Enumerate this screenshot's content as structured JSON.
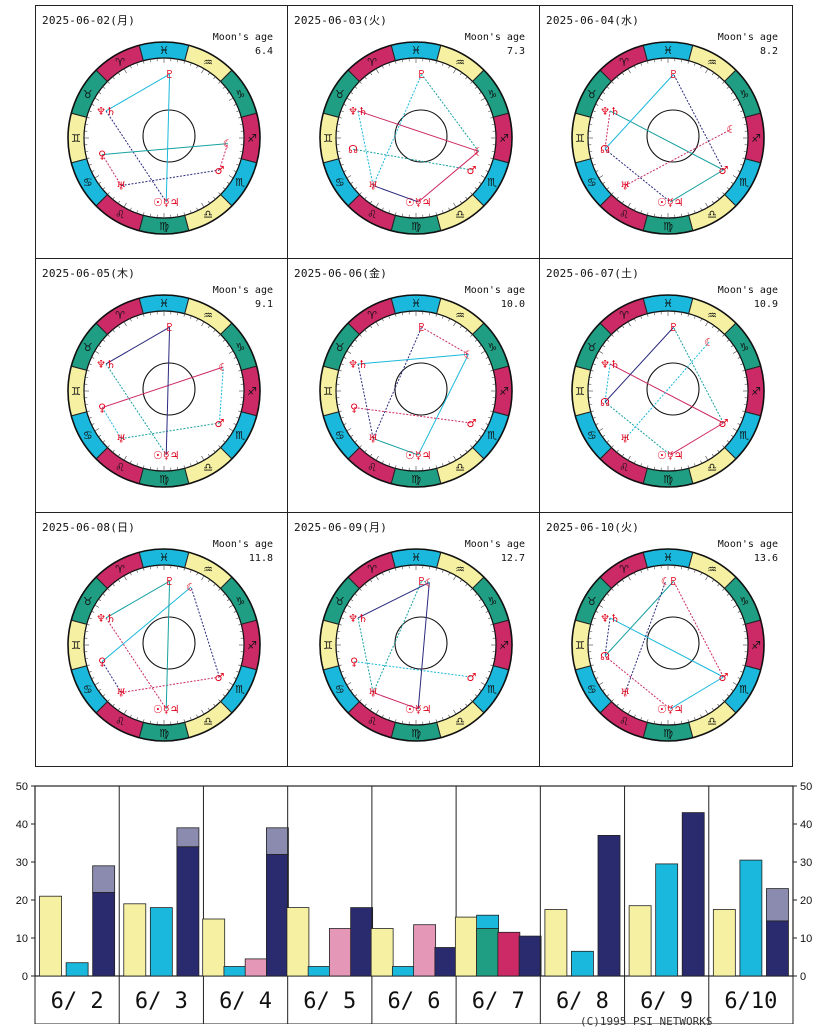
{
  "moon_label": "Moon's age",
  "colors": {
    "yellow": "#f6f1a2",
    "cyan": "#1ab8dc",
    "green": "#1f9e83",
    "magenta": "#cc2a66",
    "navy": "#2a2a6e",
    "pink": "#e597b8",
    "grey": "#8b8bb0",
    "planet_red": "#e0001a"
  },
  "zodiac": [
    {
      "glyph": "♓",
      "color": "blue"
    },
    {
      "glyph": "♒",
      "color": "yellow"
    },
    {
      "glyph": "♑",
      "color": "green"
    },
    {
      "glyph": "♐",
      "color": "magenta"
    },
    {
      "glyph": "♏",
      "color": "blue"
    },
    {
      "glyph": "♎",
      "color": "yellow"
    },
    {
      "glyph": "♍",
      "color": "green"
    },
    {
      "glyph": "♌",
      "color": "magenta"
    },
    {
      "glyph": "♋",
      "color": "blue"
    },
    {
      "glyph": "♊",
      "color": "yellow"
    },
    {
      "glyph": "♉",
      "color": "green"
    },
    {
      "glyph": "♈",
      "color": "magenta"
    }
  ],
  "horoscopes": [
    {
      "date": "2025-06-02(月)",
      "moon_age": "6.4",
      "planets": [
        {
          "g": "♆♄",
          "a": 155
        },
        {
          "g": "♀",
          "a": 195
        },
        {
          "g": "♅",
          "a": 228
        },
        {
          "g": "☉☿♃",
          "a": 272
        },
        {
          "g": "♂",
          "a": 330
        },
        {
          "g": "☾",
          "a": 355
        },
        {
          "g": "♇",
          "a": 85
        }
      ]
    },
    {
      "date": "2025-06-03(火)",
      "moon_age": "7.3",
      "planets": [
        {
          "g": "♆♄",
          "a": 155
        },
        {
          "g": "☊",
          "a": 190
        },
        {
          "g": "♅",
          "a": 228
        },
        {
          "g": "☉☿♃",
          "a": 272
        },
        {
          "g": "♂",
          "a": 330
        },
        {
          "g": "☾",
          "a": 348
        },
        {
          "g": "♇",
          "a": 85
        }
      ]
    },
    {
      "date": "2025-06-04(水)",
      "moon_age": "8.2",
      "planets": [
        {
          "g": "♆♄",
          "a": 155
        },
        {
          "g": "☊",
          "a": 190
        },
        {
          "g": "♅",
          "a": 228
        },
        {
          "g": "☉☿♃",
          "a": 272
        },
        {
          "g": "♂",
          "a": 330
        },
        {
          "g": "☾",
          "a": 8
        },
        {
          "g": "♇",
          "a": 85
        }
      ]
    },
    {
      "date": "2025-06-05(木)",
      "moon_age": "9.1",
      "planets": [
        {
          "g": "♆♄",
          "a": 155
        },
        {
          "g": "♀",
          "a": 195
        },
        {
          "g": "♅",
          "a": 228
        },
        {
          "g": "☉☿♃",
          "a": 272
        },
        {
          "g": "♂",
          "a": 330
        },
        {
          "g": "☾",
          "a": 22
        },
        {
          "g": "♇",
          "a": 85
        }
      ]
    },
    {
      "date": "2025-06-06(金)",
      "moon_age": "10.0",
      "planets": [
        {
          "g": "♆♄",
          "a": 155
        },
        {
          "g": "♀",
          "a": 195
        },
        {
          "g": "♅",
          "a": 228
        },
        {
          "g": "☉☿♃",
          "a": 272
        },
        {
          "g": "♂",
          "a": 330
        },
        {
          "g": "☾",
          "a": 35
        },
        {
          "g": "♇",
          "a": 85
        }
      ]
    },
    {
      "date": "2025-06-07(土)",
      "moon_age": "10.9",
      "planets": [
        {
          "g": "♆♄",
          "a": 155
        },
        {
          "g": "☊",
          "a": 190
        },
        {
          "g": "♅",
          "a": 228
        },
        {
          "g": "☉☿♃",
          "a": 272
        },
        {
          "g": "♂",
          "a": 330
        },
        {
          "g": "☾",
          "a": 50
        },
        {
          "g": "♇",
          "a": 85
        }
      ]
    },
    {
      "date": "2025-06-08(日)",
      "moon_age": "11.8",
      "planets": [
        {
          "g": "♆♄",
          "a": 155
        },
        {
          "g": "♀",
          "a": 195
        },
        {
          "g": "♅",
          "a": 228
        },
        {
          "g": "☉☿♃",
          "a": 272
        },
        {
          "g": "♂",
          "a": 330
        },
        {
          "g": "☾",
          "a": 65
        },
        {
          "g": "♇",
          "a": 85
        }
      ]
    },
    {
      "date": "2025-06-09(月)",
      "moon_age": "12.7",
      "planets": [
        {
          "g": "♆♄",
          "a": 155
        },
        {
          "g": "♀",
          "a": 195
        },
        {
          "g": "♅",
          "a": 228
        },
        {
          "g": "☉☿♃",
          "a": 272
        },
        {
          "g": "♂",
          "a": 330
        },
        {
          "g": "☾",
          "a": 78
        },
        {
          "g": "♇",
          "a": 85
        }
      ]
    },
    {
      "date": "2025-06-10(火)",
      "moon_age": "13.6",
      "planets": [
        {
          "g": "♆♄",
          "a": 155
        },
        {
          "g": "☊",
          "a": 190
        },
        {
          "g": "♅",
          "a": 228
        },
        {
          "g": "☉☿♃",
          "a": 272
        },
        {
          "g": "♂",
          "a": 330
        },
        {
          "g": "☾",
          "a": 92
        },
        {
          "g": "♇",
          "a": 85
        }
      ]
    }
  ],
  "chart_data": {
    "type": "bar",
    "categories": [
      "6/ 2",
      "6/ 3",
      "6/ 4",
      "6/ 5",
      "6/ 6",
      "6/ 7",
      "6/ 8",
      "6/ 9",
      "6/10"
    ],
    "ylim": [
      0,
      50
    ],
    "yticks": [
      0,
      10,
      20,
      30,
      40,
      50
    ],
    "days": [
      {
        "bars": [
          {
            "c": "yellow",
            "v": 21
          },
          {
            "c": "cyan",
            "v": 3.5
          },
          {
            "c": "navy",
            "v": 22,
            "top": 29
          }
        ]
      },
      {
        "bars": [
          {
            "c": "yellow",
            "v": 19
          },
          {
            "c": "cyan",
            "v": 18
          },
          {
            "c": "navy",
            "v": 34,
            "top": 39
          }
        ]
      },
      {
        "bars": [
          {
            "c": "yellow",
            "v": 15
          },
          {
            "c": "cyan",
            "v": 2.5
          },
          {
            "c": "pink",
            "v": 4.5
          },
          {
            "c": "navy",
            "v": 32,
            "top": 39
          }
        ]
      },
      {
        "bars": [
          {
            "c": "yellow",
            "v": 18
          },
          {
            "c": "cyan",
            "v": 2.5
          },
          {
            "c": "pink",
            "v": 12.5
          },
          {
            "c": "navy",
            "v": 18
          }
        ]
      },
      {
        "bars": [
          {
            "c": "yellow",
            "v": 12.5
          },
          {
            "c": "cyan",
            "v": 2.5
          },
          {
            "c": "pink",
            "v": 13.5
          },
          {
            "c": "navy",
            "v": 7.5
          }
        ]
      },
      {
        "bars": [
          {
            "c": "yellow",
            "v": 15.5
          },
          {
            "c": "cyan",
            "v": 16,
            "green": 12.5
          },
          {
            "c": "magenta",
            "v": 11.5
          },
          {
            "c": "navy",
            "v": 10.5
          }
        ]
      },
      {
        "bars": [
          {
            "c": "yellow",
            "v": 17.5
          },
          {
            "c": "cyan",
            "v": 6.5
          },
          {
            "c": "navy",
            "v": 37
          }
        ]
      },
      {
        "bars": [
          {
            "c": "yellow",
            "v": 18.5
          },
          {
            "c": "cyan",
            "v": 29.5
          },
          {
            "c": "navy",
            "v": 43
          }
        ]
      },
      {
        "bars": [
          {
            "c": "yellow",
            "v": 17.5
          },
          {
            "c": "cyan",
            "v": 30.5
          },
          {
            "c": "navy",
            "v": 14.5,
            "top": 23
          }
        ]
      }
    ]
  },
  "copyright": "(C)1995  PSI NETWORKS"
}
